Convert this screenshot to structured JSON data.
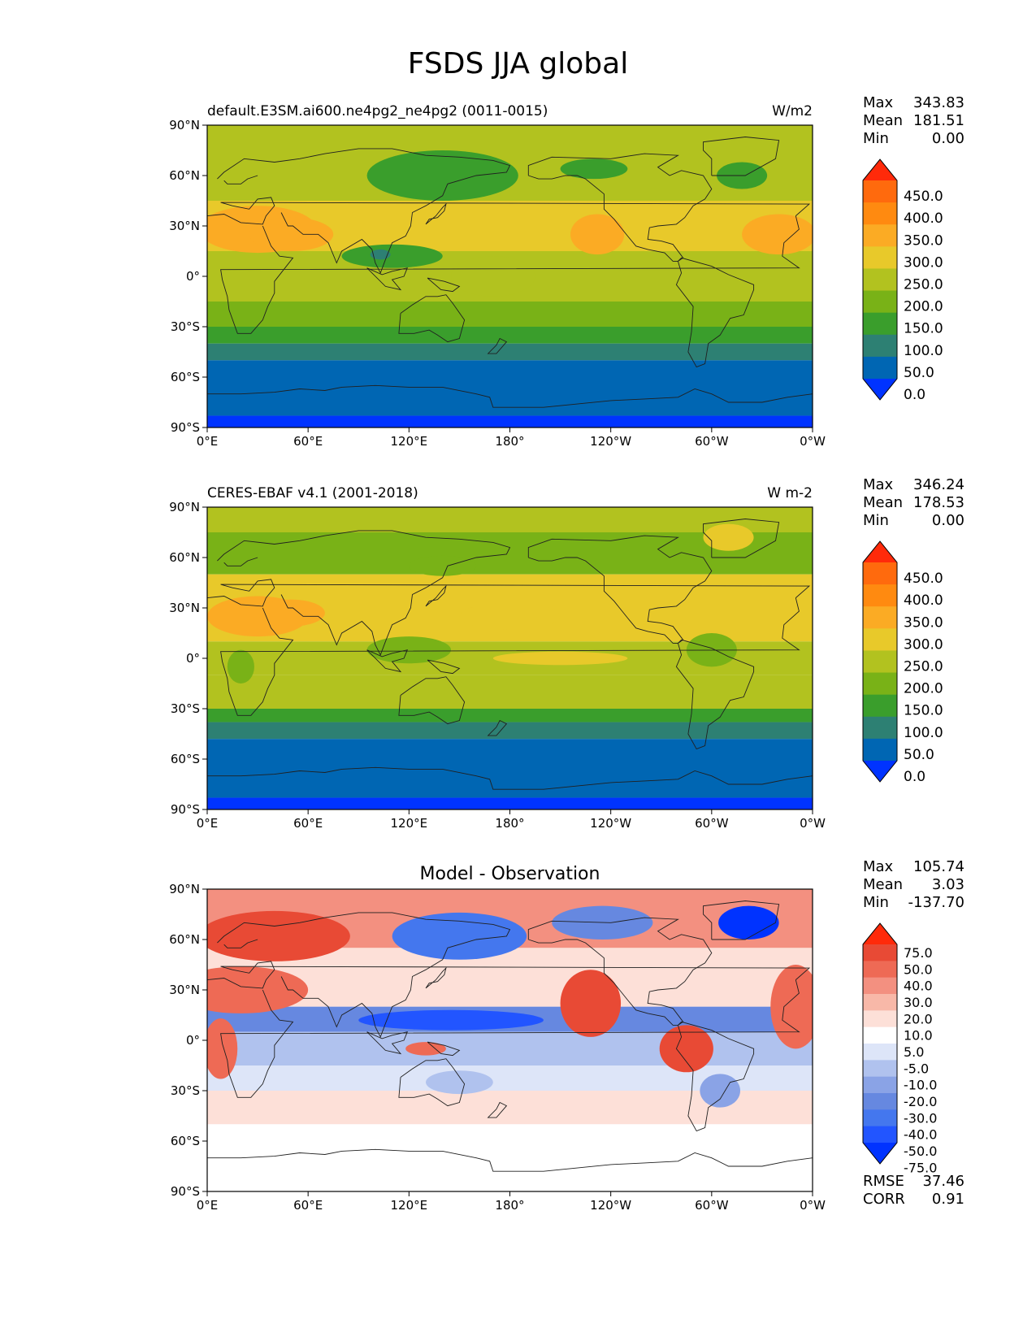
{
  "page_title": "FSDS JJA global",
  "colors": {
    "seq": [
      "#0033ff",
      "#0066b3",
      "#2d8073",
      "#3a9e2c",
      "#79b217",
      "#b2c21f",
      "#e8c92a",
      "#fbab24",
      "#ff8a10",
      "#ff6a0d",
      "#ff2a0a"
    ],
    "diff": [
      "#0033ff",
      "#2255ff",
      "#4477ee",
      "#6688e0",
      "#8aa3e6",
      "#b0c2ee",
      "#dde5f8",
      "#ffffff",
      "#fde0d8",
      "#f8b8a8",
      "#f39080",
      "#ee6a55",
      "#e84a35",
      "#ff2a0a"
    ],
    "coast": "#202020"
  },
  "axes": {
    "lon_ticks": [
      "0°E",
      "60°E",
      "120°E",
      "180°",
      "120°W",
      "60°W",
      "0°W"
    ],
    "lat_ticks": [
      "90°N",
      "60°N",
      "30°N",
      "0°",
      "30°S",
      "60°S",
      "90°S"
    ]
  },
  "chart_data": [
    {
      "type": "heatmap",
      "title": "default.E3SM.ai600.ne4pg2_ne4pg2 (0011-0015)",
      "units": "W/m2",
      "xlim": [
        0,
        360
      ],
      "ylim": [
        -90,
        90
      ],
      "stats": [
        {
          "label": "Max",
          "value": "343.83"
        },
        {
          "label": "Mean",
          "value": "181.51"
        },
        {
          "label": "Min",
          "value": "0.00"
        }
      ],
      "colorbar": {
        "levels": [
          "450.0",
          "400.0",
          "350.0",
          "300.0",
          "250.0",
          "200.0",
          "150.0",
          "100.0",
          "50.0",
          "0.0"
        ],
        "extend": "both"
      },
      "zonal_bands": [
        {
          "lat_from": 90,
          "lat_to": 60,
          "level": 5
        },
        {
          "lat_from": 60,
          "lat_to": 45,
          "level": 5
        },
        {
          "lat_from": 45,
          "lat_to": 15,
          "level": 6
        },
        {
          "lat_from": 15,
          "lat_to": -15,
          "level": 5
        },
        {
          "lat_from": -15,
          "lat_to": -30,
          "level": 4
        },
        {
          "lat_from": -30,
          "lat_to": -40,
          "level": 3
        },
        {
          "lat_from": -40,
          "lat_to": -50,
          "level": 2
        },
        {
          "lat_from": -50,
          "lat_to": -83,
          "level": 1
        },
        {
          "lat_from": -83,
          "lat_to": -90,
          "level": 0
        }
      ],
      "features": [
        {
          "lon": 30,
          "lat": 28,
          "rx": 35,
          "ry": 14,
          "level": 7
        },
        {
          "lon": 50,
          "lat": 25,
          "rx": 25,
          "ry": 10,
          "level": 7
        },
        {
          "lon": 140,
          "lat": 60,
          "rx": 45,
          "ry": 15,
          "level": 3
        },
        {
          "lon": 230,
          "lat": 64,
          "rx": 20,
          "ry": 6,
          "level": 3
        },
        {
          "lon": 318,
          "lat": 60,
          "rx": 15,
          "ry": 8,
          "level": 3
        },
        {
          "lon": 110,
          "lat": 12,
          "rx": 30,
          "ry": 7,
          "level": 3
        },
        {
          "lon": 103,
          "lat": 13,
          "rx": 6,
          "ry": 3,
          "level": 2
        },
        {
          "lon": 232,
          "lat": 25,
          "rx": 16,
          "ry": 12,
          "level": 7
        },
        {
          "lon": 340,
          "lat": 25,
          "rx": 22,
          "ry": 12,
          "level": 7
        },
        {
          "lon": 170,
          "lat": 0,
          "rx": 25,
          "ry": 12,
          "level": 5
        }
      ]
    },
    {
      "type": "heatmap",
      "title": "CERES-EBAF v4.1 (2001-2018)",
      "units": "W m-2",
      "xlim": [
        0,
        360
      ],
      "ylim": [
        -90,
        90
      ],
      "stats": [
        {
          "label": "Max",
          "value": "346.24"
        },
        {
          "label": "Mean",
          "value": "178.53"
        },
        {
          "label": "Min",
          "value": "0.00"
        }
      ],
      "colorbar": {
        "levels": [
          "450.0",
          "400.0",
          "350.0",
          "300.0",
          "250.0",
          "200.0",
          "150.0",
          "100.0",
          "50.0",
          "0.0"
        ],
        "extend": "both"
      },
      "zonal_bands": [
        {
          "lat_from": 90,
          "lat_to": 75,
          "level": 5
        },
        {
          "lat_from": 75,
          "lat_to": 50,
          "level": 4
        },
        {
          "lat_from": 50,
          "lat_to": 10,
          "level": 6
        },
        {
          "lat_from": 10,
          "lat_to": -10,
          "level": 5
        },
        {
          "lat_from": -10,
          "lat_to": -30,
          "level": 5
        },
        {
          "lat_from": -30,
          "lat_to": -38,
          "level": 3
        },
        {
          "lat_from": -38,
          "lat_to": -48,
          "level": 2
        },
        {
          "lat_from": -48,
          "lat_to": -83,
          "level": 1
        },
        {
          "lat_from": -83,
          "lat_to": -90,
          "level": 0
        }
      ],
      "features": [
        {
          "lon": 30,
          "lat": 25,
          "rx": 30,
          "ry": 12,
          "level": 7
        },
        {
          "lon": 50,
          "lat": 27,
          "rx": 20,
          "ry": 8,
          "level": 7
        },
        {
          "lon": 310,
          "lat": 72,
          "rx": 15,
          "ry": 8,
          "level": 6
        },
        {
          "lon": 180,
          "lat": 25,
          "rx": 30,
          "ry": 8,
          "level": 6
        },
        {
          "lon": 210,
          "lat": 0,
          "rx": 40,
          "ry": 4,
          "level": 6
        },
        {
          "lon": 120,
          "lat": 5,
          "rx": 25,
          "ry": 8,
          "level": 4
        },
        {
          "lon": 300,
          "lat": 5,
          "rx": 15,
          "ry": 10,
          "level": 4
        },
        {
          "lon": 20,
          "lat": -5,
          "rx": 8,
          "ry": 10,
          "level": 4
        },
        {
          "lon": 140,
          "lat": 55,
          "rx": 20,
          "ry": 6,
          "level": 4
        }
      ]
    },
    {
      "type": "heatmap",
      "title": "Model - Observation",
      "units": "",
      "xlim": [
        0,
        360
      ],
      "ylim": [
        -90,
        90
      ],
      "stats": [
        {
          "label": "Max",
          "value": "105.74"
        },
        {
          "label": "Mean",
          "value": "3.03"
        },
        {
          "label": "Min",
          "value": "-137.70"
        }
      ],
      "colorbar": {
        "levels": [
          "75.0",
          "50.0",
          "40.0",
          "30.0",
          "20.0",
          "10.0",
          "5.0",
          "-5.0",
          "-10.0",
          "-20.0",
          "-30.0",
          "-40.0",
          "-50.0",
          "-75.0"
        ],
        "extend": "both"
      },
      "zonal_bands": [
        {
          "lat_from": 90,
          "lat_to": 55,
          "level": 10
        },
        {
          "lat_from": 55,
          "lat_to": 20,
          "level": 8
        },
        {
          "lat_from": 20,
          "lat_to": 5,
          "level": 3
        },
        {
          "lat_from": 5,
          "lat_to": -15,
          "level": 5
        },
        {
          "lat_from": -15,
          "lat_to": -30,
          "level": 6
        },
        {
          "lat_from": -30,
          "lat_to": -50,
          "level": 8
        },
        {
          "lat_from": -50,
          "lat_to": -90,
          "level": 7
        }
      ],
      "features": [
        {
          "lon": 40,
          "lat": 62,
          "rx": 45,
          "ry": 15,
          "level": 12
        },
        {
          "lon": 20,
          "lat": 30,
          "rx": 40,
          "ry": 14,
          "level": 11
        },
        {
          "lon": 150,
          "lat": 62,
          "rx": 40,
          "ry": 14,
          "level": 2
        },
        {
          "lon": 235,
          "lat": 70,
          "rx": 30,
          "ry": 10,
          "level": 3
        },
        {
          "lon": 322,
          "lat": 70,
          "rx": 18,
          "ry": 10,
          "level": 0
        },
        {
          "lon": 228,
          "lat": 22,
          "rx": 18,
          "ry": 20,
          "level": 12
        },
        {
          "lon": 350,
          "lat": 20,
          "rx": 15,
          "ry": 25,
          "level": 11
        },
        {
          "lon": 145,
          "lat": 12,
          "rx": 55,
          "ry": 6,
          "level": 1
        },
        {
          "lon": 285,
          "lat": -5,
          "rx": 16,
          "ry": 14,
          "level": 12
        },
        {
          "lon": 8,
          "lat": -5,
          "rx": 10,
          "ry": 18,
          "level": 11
        },
        {
          "lon": 150,
          "lat": -25,
          "rx": 20,
          "ry": 7,
          "level": 5
        },
        {
          "lon": 305,
          "lat": -30,
          "rx": 12,
          "ry": 10,
          "level": 4
        },
        {
          "lon": 130,
          "lat": -5,
          "rx": 12,
          "ry": 4,
          "level": 11
        }
      ]
    }
  ],
  "footer_stats": [
    {
      "label": "RMSE",
      "value": "37.46"
    },
    {
      "label": "CORR",
      "value": "0.91"
    }
  ]
}
